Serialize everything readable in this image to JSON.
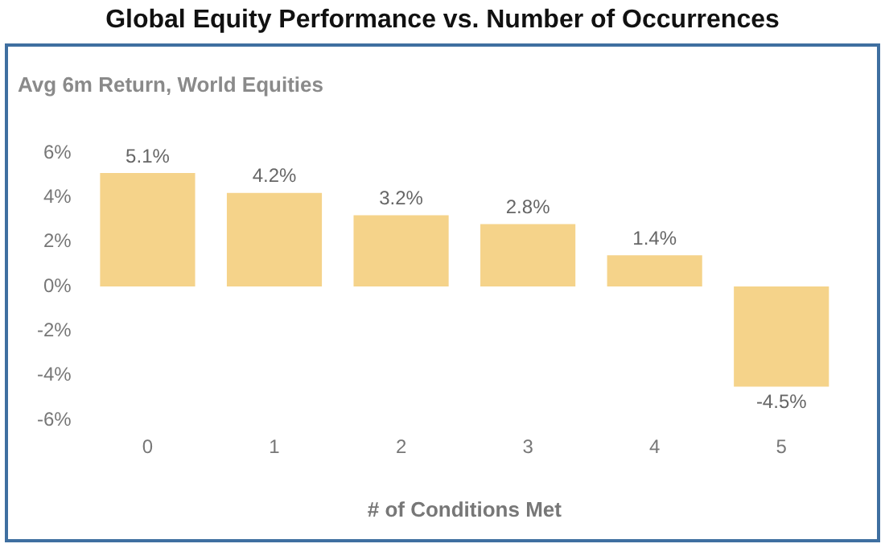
{
  "chart_data": {
    "type": "bar",
    "title": "Global Equity Performance vs. Number of Occurrences",
    "subtitle": "Avg 6m Return, World Equities",
    "xlabel": "# of Conditions Met",
    "categories": [
      "0",
      "1",
      "2",
      "3",
      "4",
      "5"
    ],
    "values": [
      5.1,
      4.2,
      3.2,
      2.8,
      1.4,
      -4.5
    ],
    "value_labels": [
      "5.1%",
      "4.2%",
      "3.2%",
      "2.8%",
      "1.4%",
      "-4.5%"
    ],
    "color": "#f5d38a",
    "ylim": [
      -6,
      6
    ],
    "yticks": [
      {
        "value": -6,
        "label": "-6%"
      },
      {
        "value": -4,
        "label": "-4%"
      },
      {
        "value": -2,
        "label": "-2%"
      },
      {
        "value": 0,
        "label": "0%"
      },
      {
        "value": 2,
        "label": "2%"
      },
      {
        "value": 4,
        "label": "4%"
      },
      {
        "value": 6,
        "label": "6%"
      }
    ],
    "grid": false,
    "legend": false
  }
}
